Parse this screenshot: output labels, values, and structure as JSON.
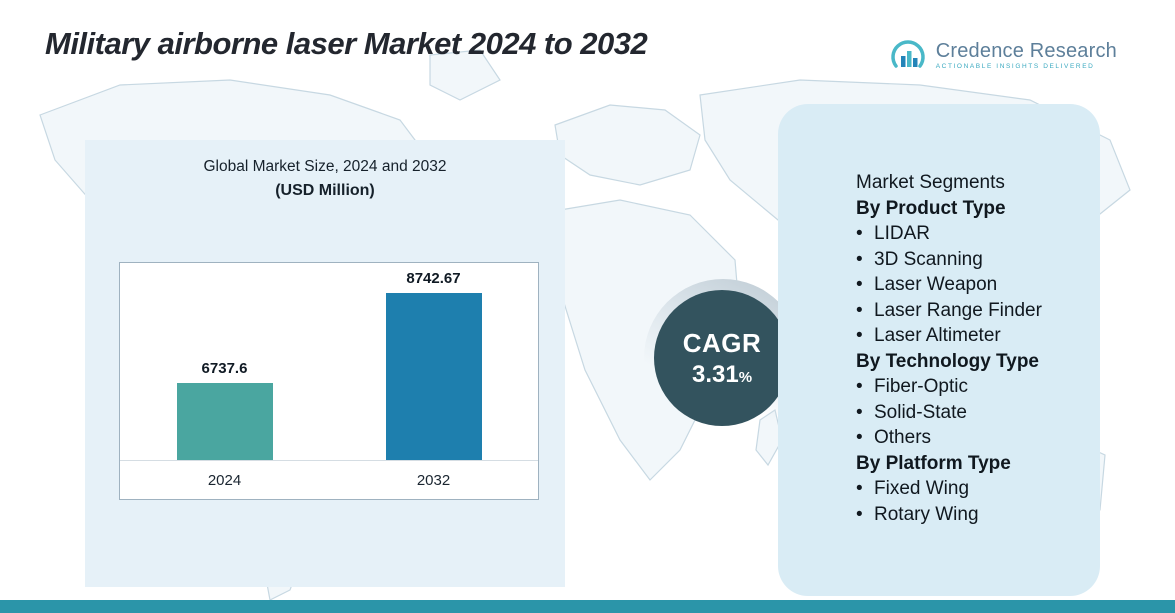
{
  "page": {
    "title": "Military airborne laser Market 2024 to 2032"
  },
  "logo": {
    "name": "Credence Research",
    "tagline": "Actionable Insights Delivered"
  },
  "chart_panel": {
    "title_line1": "Global Market Size, 2024 and 2032",
    "title_line2": "(USD Million)"
  },
  "chart_data": {
    "type": "bar",
    "title": "Global Market Size, 2024 and 2032 (USD Million)",
    "categories": [
      "2024",
      "2032"
    ],
    "values": [
      6737.6,
      8742.67
    ],
    "value_labels": [
      "6737.6",
      "8742.67"
    ],
    "bar_colors": [
      "#4aa6a0",
      "#1e7fae"
    ],
    "ylabel": "",
    "xlabel": "",
    "ylim": [
      5000,
      9000
    ],
    "grid": false,
    "legend": "none"
  },
  "cagr": {
    "label": "CAGR",
    "value": "3.31",
    "percent_sign": "%"
  },
  "segments": {
    "heading": "Market Segments",
    "bullet": "•",
    "groups": [
      {
        "title": "By Product Type",
        "items": [
          "LIDAR",
          "3D Scanning",
          "Laser Weapon",
          "Laser Range Finder",
          "Laser Altimeter"
        ]
      },
      {
        "title": "By Technology Type",
        "items": [
          "Fiber-Optic",
          "Solid-State",
          "Others"
        ]
      },
      {
        "title": "By Platform Type",
        "items": [
          "Fixed Wing",
          "Rotary Wing"
        ]
      }
    ]
  },
  "colors": {
    "bar_2024": "#4aa6a0",
    "bar_2032": "#1e7fae",
    "cagr_circle": "#33535e",
    "panel_left_bg": "#e6f1f8",
    "panel_right_bg": "#d9ecf5",
    "bottom_strip": "#2b95a9"
  }
}
